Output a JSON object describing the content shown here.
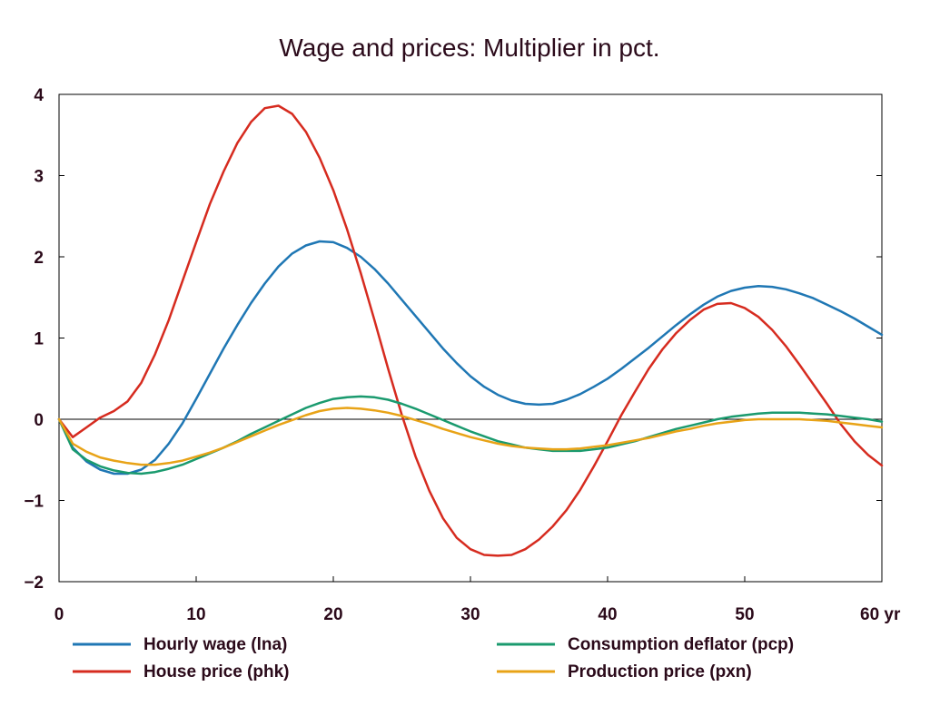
{
  "chart_data": {
    "type": "line",
    "title": "Wage and prices: Multiplier in pct.",
    "x_unit": "yr",
    "xlim": [
      0,
      60
    ],
    "ylim": [
      -2,
      4
    ],
    "x_ticks": [
      0,
      10,
      20,
      30,
      40,
      50,
      60
    ],
    "x_tick_labels": [
      "0",
      "10",
      "20",
      "30",
      "40",
      "50",
      "60 yr"
    ],
    "y_ticks": [
      4,
      3,
      2,
      1,
      0,
      -1,
      -2
    ],
    "y_tick_labels": [
      "4",
      "3",
      "2",
      "1",
      "0",
      "−1",
      "−2"
    ],
    "legend": "bottom",
    "grid": false,
    "x": [
      0,
      1,
      2,
      3,
      4,
      5,
      6,
      7,
      8,
      9,
      10,
      11,
      12,
      13,
      14,
      15,
      16,
      17,
      18,
      19,
      20,
      21,
      22,
      23,
      24,
      25,
      26,
      27,
      28,
      29,
      30,
      31,
      32,
      33,
      34,
      35,
      36,
      37,
      38,
      39,
      40,
      41,
      42,
      43,
      44,
      45,
      46,
      47,
      48,
      49,
      50,
      51,
      52,
      53,
      54,
      55,
      56,
      57,
      58,
      59,
      60
    ],
    "series": [
      {
        "name": "Hourly wage (lna)",
        "color": "#1f77b4",
        "values": [
          0,
          -0.35,
          -0.52,
          -0.62,
          -0.67,
          -0.67,
          -0.62,
          -0.5,
          -0.3,
          -0.05,
          0.25,
          0.56,
          0.87,
          1.16,
          1.43,
          1.67,
          1.88,
          2.04,
          2.14,
          2.19,
          2.18,
          2.11,
          2.0,
          1.85,
          1.67,
          1.47,
          1.27,
          1.07,
          0.87,
          0.69,
          0.53,
          0.4,
          0.3,
          0.23,
          0.19,
          0.18,
          0.19,
          0.24,
          0.31,
          0.4,
          0.5,
          0.62,
          0.75,
          0.88,
          1.02,
          1.16,
          1.29,
          1.41,
          1.51,
          1.58,
          1.62,
          1.64,
          1.63,
          1.6,
          1.55,
          1.49,
          1.41,
          1.33,
          1.24,
          1.14,
          1.04
        ]
      },
      {
        "name": "House price (phk)",
        "color": "#d62b1f",
        "values": [
          0,
          -0.22,
          -0.1,
          0.02,
          0.1,
          0.22,
          0.45,
          0.8,
          1.22,
          1.7,
          2.18,
          2.65,
          3.05,
          3.4,
          3.66,
          3.83,
          3.86,
          3.76,
          3.54,
          3.22,
          2.82,
          2.34,
          1.8,
          1.22,
          0.62,
          0.05,
          -0.46,
          -0.88,
          -1.22,
          -1.46,
          -1.6,
          -1.67,
          -1.68,
          -1.67,
          -1.6,
          -1.48,
          -1.32,
          -1.12,
          -0.87,
          -0.58,
          -0.27,
          0.05,
          0.34,
          0.62,
          0.86,
          1.06,
          1.22,
          1.35,
          1.42,
          1.43,
          1.37,
          1.26,
          1.1,
          0.9,
          0.67,
          0.43,
          0.19,
          -0.06,
          -0.27,
          -0.44,
          -0.57
        ]
      },
      {
        "name": "Consumption deflator (pcp)",
        "color": "#1a9a6e",
        "values": [
          0,
          -0.37,
          -0.5,
          -0.58,
          -0.63,
          -0.66,
          -0.67,
          -0.65,
          -0.61,
          -0.56,
          -0.49,
          -0.42,
          -0.35,
          -0.27,
          -0.18,
          -0.1,
          -0.02,
          0.06,
          0.14,
          0.2,
          0.25,
          0.27,
          0.28,
          0.27,
          0.24,
          0.19,
          0.13,
          0.06,
          -0.01,
          -0.08,
          -0.15,
          -0.21,
          -0.27,
          -0.31,
          -0.35,
          -0.37,
          -0.39,
          -0.39,
          -0.39,
          -0.37,
          -0.35,
          -0.31,
          -0.27,
          -0.22,
          -0.17,
          -0.12,
          -0.08,
          -0.04,
          0.0,
          0.03,
          0.05,
          0.07,
          0.08,
          0.08,
          0.08,
          0.07,
          0.06,
          0.04,
          0.02,
          0.0,
          -0.03
        ]
      },
      {
        "name": "Production price (pxn)",
        "color": "#e8a317",
        "values": [
          0,
          -0.3,
          -0.4,
          -0.47,
          -0.51,
          -0.54,
          -0.56,
          -0.56,
          -0.54,
          -0.51,
          -0.46,
          -0.41,
          -0.35,
          -0.28,
          -0.21,
          -0.14,
          -0.07,
          -0.01,
          0.05,
          0.1,
          0.13,
          0.14,
          0.13,
          0.11,
          0.08,
          0.04,
          -0.01,
          -0.06,
          -0.12,
          -0.17,
          -0.22,
          -0.26,
          -0.3,
          -0.33,
          -0.35,
          -0.36,
          -0.37,
          -0.37,
          -0.36,
          -0.34,
          -0.32,
          -0.29,
          -0.26,
          -0.23,
          -0.19,
          -0.15,
          -0.12,
          -0.08,
          -0.05,
          -0.03,
          -0.01,
          0.0,
          0.0,
          0.0,
          0.0,
          -0.01,
          -0.02,
          -0.04,
          -0.06,
          -0.08,
          -0.1
        ]
      }
    ]
  }
}
